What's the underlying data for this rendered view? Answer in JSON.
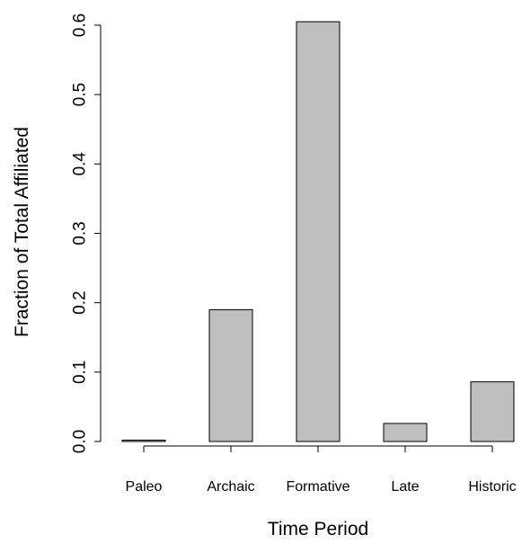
{
  "chart_data": {
    "type": "bar",
    "title": "",
    "xlabel": "Time Period",
    "ylabel": "Fraction of Total Affiliated",
    "categories": [
      "Paleo",
      "Archaic",
      "Formative",
      "Late",
      "Historic"
    ],
    "values": [
      0.002,
      0.19,
      0.605,
      0.026,
      0.086
    ],
    "ylim": [
      0,
      0.6
    ],
    "yticks": [
      "0.0",
      "0.1",
      "0.2",
      "0.3",
      "0.4",
      "0.5",
      "0.6"
    ],
    "bar_color": "#bebebe",
    "grid": false,
    "legend": "none"
  }
}
